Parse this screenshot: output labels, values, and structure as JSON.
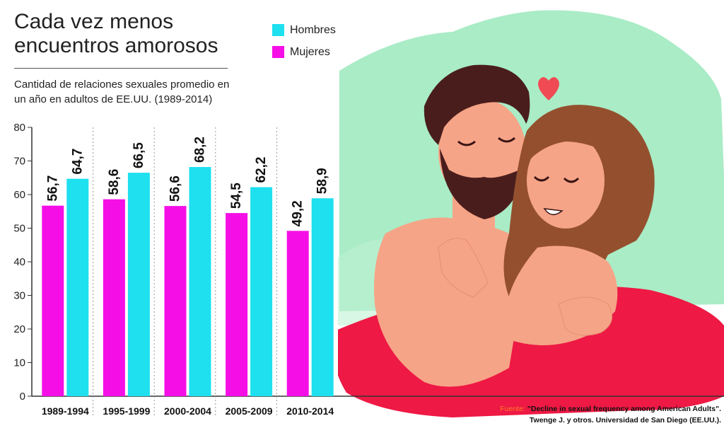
{
  "title": "Cada vez menos encuentros amorosos",
  "subtitle": "Cantidad de relaciones sexuales promedio en un año en adultos de EE.UU. (1989-2014)",
  "legend": [
    {
      "label": "Hombres",
      "color": "#1ee0ef"
    },
    {
      "label": "Mujeres",
      "color": "#f50fe6"
    }
  ],
  "chart_data": {
    "type": "bar",
    "categories": [
      "1989-1994",
      "1995-1999",
      "2000-2004",
      "2005-2009",
      "2010-2014"
    ],
    "series": [
      {
        "name": "Mujeres",
        "color": "#f50fe6",
        "values": [
          56.7,
          58.6,
          56.6,
          54.5,
          49.2
        ],
        "labels": [
          "56,7",
          "58,6",
          "56,6",
          "54,5",
          "49,2"
        ]
      },
      {
        "name": "Hombres",
        "color": "#1ee0ef",
        "values": [
          64.7,
          66.5,
          68.2,
          62.2,
          58.9
        ],
        "labels": [
          "64,7",
          "66,5",
          "68,2",
          "62,2",
          "58,9"
        ]
      }
    ],
    "ylim": [
      0,
      80
    ],
    "yticks": [
      0,
      10,
      20,
      30,
      40,
      50,
      60,
      70,
      80
    ],
    "xlabel": "",
    "ylabel": "",
    "grid": false,
    "legend_position": "top"
  },
  "source": {
    "label": "Fuente:",
    "line1": "\"Decline in sexual frequency among American Adults\".",
    "line2": "Twenge J. y otros. Universidad de San Diego (EE.UU.)."
  },
  "illustration": {
    "pillow_color": "#a9ecc6",
    "sheet_color": "#ee1944",
    "skin_color": "#f6a487",
    "hair_man_color": "#4a1d1d",
    "hair_woman_color": "#94502e",
    "heart_color": "#f04a55"
  }
}
